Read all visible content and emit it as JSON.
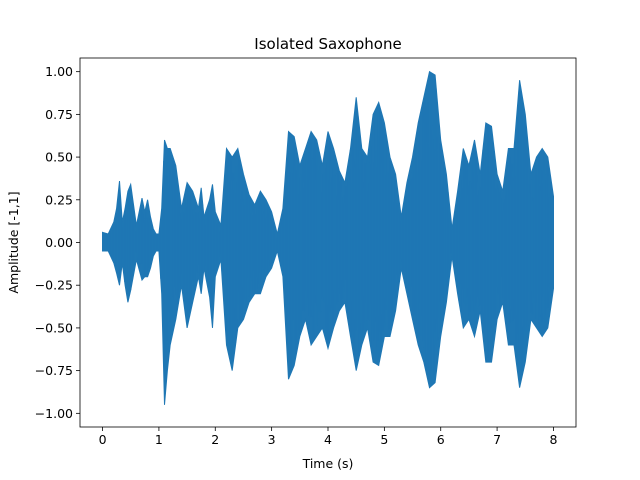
{
  "chart_data": {
    "type": "line",
    "title": "Isolated Saxophone",
    "xlabel": "Time (s)",
    "ylabel": "Amplitude [-1,1]",
    "xlim": [
      -0.4,
      8.4
    ],
    "ylim": [
      -1.08,
      1.08
    ],
    "xticks": [
      0,
      1,
      2,
      3,
      4,
      5,
      6,
      7,
      8
    ],
    "yticks": [
      -1.0,
      -0.75,
      -0.5,
      -0.25,
      0.0,
      0.25,
      0.5,
      0.75,
      1.0
    ],
    "ytick_labels": [
      "−1.00",
      "−0.75",
      "−0.50",
      "−0.25",
      "0.00",
      "0.25",
      "0.50",
      "0.75",
      "1.00"
    ],
    "grid": false,
    "series": [
      {
        "color": "#1f77b4",
        "envelope_time": [
          0,
          0.1,
          0.2,
          0.25,
          0.3,
          0.35,
          0.4,
          0.45,
          0.5,
          0.6,
          0.7,
          0.75,
          0.8,
          0.85,
          0.9,
          0.95,
          1.0,
          1.05,
          1.1,
          1.15,
          1.2,
          1.3,
          1.4,
          1.5,
          1.6,
          1.7,
          1.75,
          1.8,
          1.9,
          1.95,
          2.0,
          2.1,
          2.2,
          2.3,
          2.4,
          2.5,
          2.6,
          2.7,
          2.8,
          2.9,
          3.0,
          3.1,
          3.2,
          3.3,
          3.4,
          3.5,
          3.6,
          3.7,
          3.8,
          3.9,
          4.0,
          4.1,
          4.2,
          4.3,
          4.4,
          4.5,
          4.6,
          4.7,
          4.8,
          4.9,
          5.0,
          5.1,
          5.2,
          5.3,
          5.4,
          5.5,
          5.6,
          5.7,
          5.8,
          5.9,
          6.0,
          6.1,
          6.2,
          6.3,
          6.4,
          6.5,
          6.6,
          6.7,
          6.8,
          6.9,
          7.0,
          7.1,
          7.2,
          7.3,
          7.4,
          7.5,
          7.6,
          7.7,
          7.8,
          7.9,
          8.0
        ],
        "envelope_max": [
          0.06,
          0.05,
          0.12,
          0.2,
          0.36,
          0.12,
          0.2,
          0.3,
          0.34,
          0.1,
          0.26,
          0.18,
          0.25,
          0.15,
          0.08,
          0.05,
          0.05,
          0.2,
          0.6,
          0.55,
          0.55,
          0.45,
          0.2,
          0.35,
          0.3,
          0.2,
          0.32,
          0.15,
          0.25,
          0.34,
          0.18,
          0.1,
          0.55,
          0.5,
          0.55,
          0.4,
          0.28,
          0.22,
          0.3,
          0.25,
          0.18,
          0.05,
          0.2,
          0.65,
          0.62,
          0.45,
          0.55,
          0.65,
          0.6,
          0.45,
          0.65,
          0.55,
          0.42,
          0.35,
          0.55,
          0.85,
          0.55,
          0.5,
          0.75,
          0.82,
          0.7,
          0.5,
          0.4,
          0.15,
          0.35,
          0.5,
          0.7,
          0.85,
          1.0,
          0.98,
          0.6,
          0.4,
          0.08,
          0.3,
          0.55,
          0.45,
          0.6,
          0.4,
          0.7,
          0.68,
          0.4,
          0.3,
          0.55,
          0.55,
          0.95,
          0.75,
          0.4,
          0.5,
          0.55,
          0.5,
          0.27
        ],
        "envelope_min": [
          -0.05,
          -0.05,
          -0.12,
          -0.18,
          -0.25,
          -0.12,
          -0.25,
          -0.35,
          -0.28,
          -0.1,
          -0.22,
          -0.2,
          -0.2,
          -0.15,
          -0.08,
          -0.05,
          -0.05,
          -0.3,
          -0.95,
          -0.75,
          -0.6,
          -0.45,
          -0.25,
          -0.5,
          -0.35,
          -0.2,
          -0.3,
          -0.15,
          -0.32,
          -0.5,
          -0.2,
          -0.1,
          -0.6,
          -0.75,
          -0.5,
          -0.45,
          -0.35,
          -0.3,
          -0.3,
          -0.2,
          -0.15,
          -0.05,
          -0.2,
          -0.8,
          -0.72,
          -0.55,
          -0.45,
          -0.6,
          -0.55,
          -0.5,
          -0.62,
          -0.5,
          -0.4,
          -0.35,
          -0.55,
          -0.75,
          -0.6,
          -0.5,
          -0.7,
          -0.72,
          -0.55,
          -0.55,
          -0.4,
          -0.15,
          -0.3,
          -0.45,
          -0.6,
          -0.7,
          -0.85,
          -0.82,
          -0.55,
          -0.35,
          -0.08,
          -0.3,
          -0.5,
          -0.45,
          -0.55,
          -0.4,
          -0.7,
          -0.7,
          -0.45,
          -0.35,
          -0.6,
          -0.6,
          -0.85,
          -0.7,
          -0.45,
          -0.5,
          -0.55,
          -0.5,
          -0.27
        ]
      }
    ]
  }
}
